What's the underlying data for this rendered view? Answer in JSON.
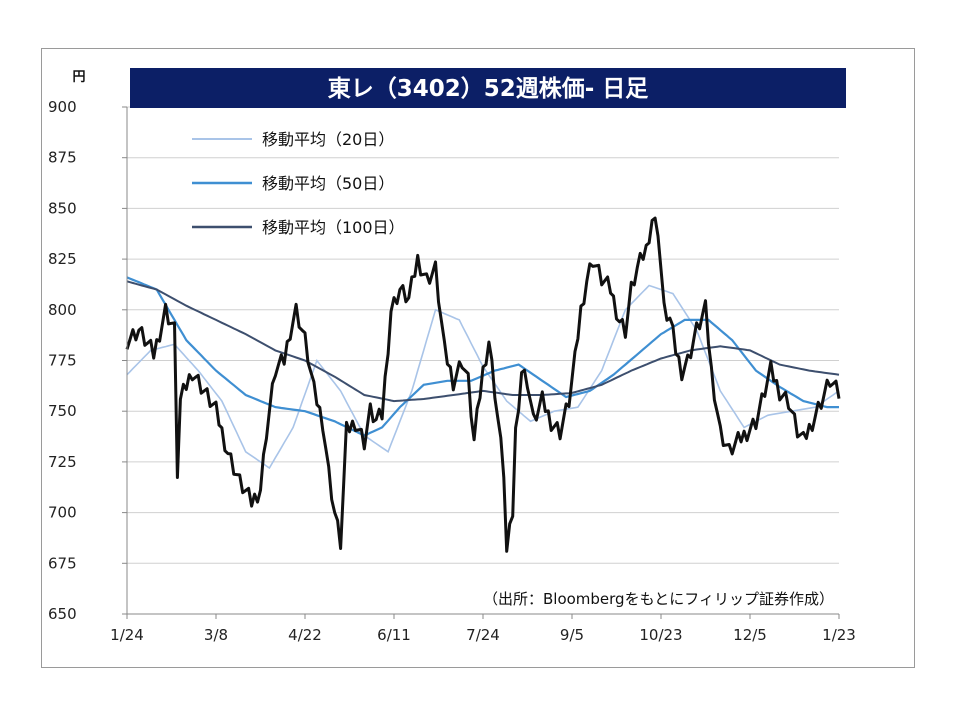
{
  "chart_data": {
    "type": "line",
    "title": "東レ（3402）52週株価- 日足",
    "unit_label": "円",
    "source_note": "（出所：Bloombergをもとにフィリップ証券作成）",
    "ylim": [
      650,
      900
    ],
    "yticks": [
      650,
      675,
      700,
      725,
      750,
      775,
      800,
      825,
      850,
      875,
      900
    ],
    "x_tick_labels": [
      "1/24",
      "3/8",
      "4/22",
      "6/11",
      "7/24",
      "9/5",
      "10/23",
      "12/5",
      "1/23"
    ],
    "x_tick_index": [
      0,
      30,
      60,
      90,
      120,
      150,
      180,
      210,
      240
    ],
    "x_count": 241,
    "grid": true,
    "legend_position": "top-left",
    "colors": {
      "price": "#111111",
      "ma20": "#a9c4e8",
      "ma50": "#3f8fd2",
      "ma100": "#3d4f6e",
      "title_bg": "#0c1f66",
      "grid": "#d0d0d0"
    },
    "price_series": {
      "name": "",
      "points": [
        [
          0,
          785
        ],
        [
          4,
          790
        ],
        [
          9,
          778
        ],
        [
          13,
          800
        ],
        [
          16,
          790
        ],
        [
          17,
          720
        ],
        [
          18,
          755
        ],
        [
          22,
          770
        ],
        [
          26,
          760
        ],
        [
          30,
          750
        ],
        [
          34,
          730
        ],
        [
          38,
          715
        ],
        [
          42,
          705
        ],
        [
          45,
          712
        ],
        [
          47,
          740
        ],
        [
          50,
          770
        ],
        [
          53,
          775
        ],
        [
          55,
          790
        ],
        [
          57,
          800
        ],
        [
          60,
          785
        ],
        [
          63,
          760
        ],
        [
          66,
          745
        ],
        [
          68,
          720
        ],
        [
          70,
          700
        ],
        [
          72,
          685
        ],
        [
          74,
          740
        ],
        [
          77,
          745
        ],
        [
          80,
          735
        ],
        [
          82,
          750
        ],
        [
          84,
          745
        ],
        [
          86,
          748
        ],
        [
          89,
          800
        ],
        [
          92,
          810
        ],
        [
          95,
          805
        ],
        [
          98,
          825
        ],
        [
          101,
          815
        ],
        [
          104,
          820
        ],
        [
          107,
          780
        ],
        [
          110,
          765
        ],
        [
          113,
          775
        ],
        [
          115,
          765
        ],
        [
          117,
          735
        ],
        [
          120,
          770
        ],
        [
          122,
          785
        ],
        [
          124,
          760
        ],
        [
          127,
          720
        ],
        [
          128,
          680
        ],
        [
          130,
          700
        ],
        [
          131,
          740
        ],
        [
          133,
          770
        ],
        [
          135,
          765
        ],
        [
          137,
          745
        ],
        [
          140,
          755
        ],
        [
          143,
          745
        ],
        [
          146,
          740
        ],
        [
          149,
          755
        ],
        [
          151,
          775
        ],
        [
          153,
          800
        ],
        [
          155,
          815
        ],
        [
          157,
          825
        ],
        [
          160,
          815
        ],
        [
          163,
          810
        ],
        [
          166,
          795
        ],
        [
          168,
          790
        ],
        [
          170,
          810
        ],
        [
          172,
          820
        ],
        [
          175,
          830
        ],
        [
          177,
          845
        ],
        [
          179,
          840
        ],
        [
          181,
          800
        ],
        [
          183,
          795
        ],
        [
          185,
          780
        ],
        [
          187,
          770
        ],
        [
          189,
          775
        ],
        [
          192,
          790
        ],
        [
          195,
          800
        ],
        [
          197,
          770
        ],
        [
          200,
          740
        ],
        [
          203,
          730
        ],
        [
          206,
          735
        ],
        [
          209,
          740
        ],
        [
          212,
          745
        ],
        [
          215,
          760
        ],
        [
          217,
          770
        ],
        [
          220,
          760
        ],
        [
          223,
          755
        ],
        [
          226,
          740
        ],
        [
          228,
          735
        ],
        [
          231,
          745
        ],
        [
          234,
          755
        ],
        [
          237,
          765
        ],
        [
          240,
          758
        ]
      ]
    },
    "series": [
      {
        "name": "移動平均（20日）",
        "points": [
          [
            0,
            768
          ],
          [
            8,
            780
          ],
          [
            16,
            783
          ],
          [
            24,
            770
          ],
          [
            32,
            755
          ],
          [
            40,
            730
          ],
          [
            48,
            722
          ],
          [
            56,
            742
          ],
          [
            64,
            775
          ],
          [
            72,
            760
          ],
          [
            80,
            738
          ],
          [
            88,
            730
          ],
          [
            96,
            760
          ],
          [
            104,
            800
          ],
          [
            112,
            795
          ],
          [
            120,
            772
          ],
          [
            128,
            755
          ],
          [
            136,
            745
          ],
          [
            144,
            750
          ],
          [
            152,
            752
          ],
          [
            160,
            770
          ],
          [
            168,
            800
          ],
          [
            176,
            812
          ],
          [
            184,
            808
          ],
          [
            192,
            790
          ],
          [
            200,
            760
          ],
          [
            208,
            742
          ],
          [
            216,
            748
          ],
          [
            224,
            750
          ],
          [
            232,
            752
          ],
          [
            240,
            760
          ]
        ]
      },
      {
        "name": "移動平均（50日）",
        "points": [
          [
            0,
            816
          ],
          [
            10,
            810
          ],
          [
            20,
            785
          ],
          [
            30,
            770
          ],
          [
            40,
            758
          ],
          [
            50,
            752
          ],
          [
            60,
            750
          ],
          [
            70,
            745
          ],
          [
            80,
            738
          ],
          [
            86,
            742
          ],
          [
            92,
            752
          ],
          [
            100,
            763
          ],
          [
            108,
            765
          ],
          [
            116,
            765
          ],
          [
            124,
            770
          ],
          [
            132,
            773
          ],
          [
            140,
            765
          ],
          [
            148,
            757
          ],
          [
            156,
            760
          ],
          [
            164,
            768
          ],
          [
            172,
            778
          ],
          [
            180,
            788
          ],
          [
            188,
            795
          ],
          [
            196,
            795
          ],
          [
            204,
            785
          ],
          [
            212,
            770
          ],
          [
            220,
            762
          ],
          [
            228,
            755
          ],
          [
            236,
            752
          ],
          [
            240,
            752
          ]
        ]
      },
      {
        "name": "移動平均（100日）",
        "points": [
          [
            0,
            814
          ],
          [
            10,
            810
          ],
          [
            20,
            802
          ],
          [
            30,
            795
          ],
          [
            40,
            788
          ],
          [
            50,
            780
          ],
          [
            60,
            775
          ],
          [
            70,
            767
          ],
          [
            80,
            758
          ],
          [
            90,
            755
          ],
          [
            100,
            756
          ],
          [
            110,
            758
          ],
          [
            120,
            760
          ],
          [
            130,
            758
          ],
          [
            140,
            758
          ],
          [
            150,
            759
          ],
          [
            160,
            763
          ],
          [
            170,
            770
          ],
          [
            180,
            776
          ],
          [
            190,
            780
          ],
          [
            200,
            782
          ],
          [
            210,
            780
          ],
          [
            220,
            773
          ],
          [
            230,
            770
          ],
          [
            240,
            768
          ]
        ]
      }
    ]
  }
}
